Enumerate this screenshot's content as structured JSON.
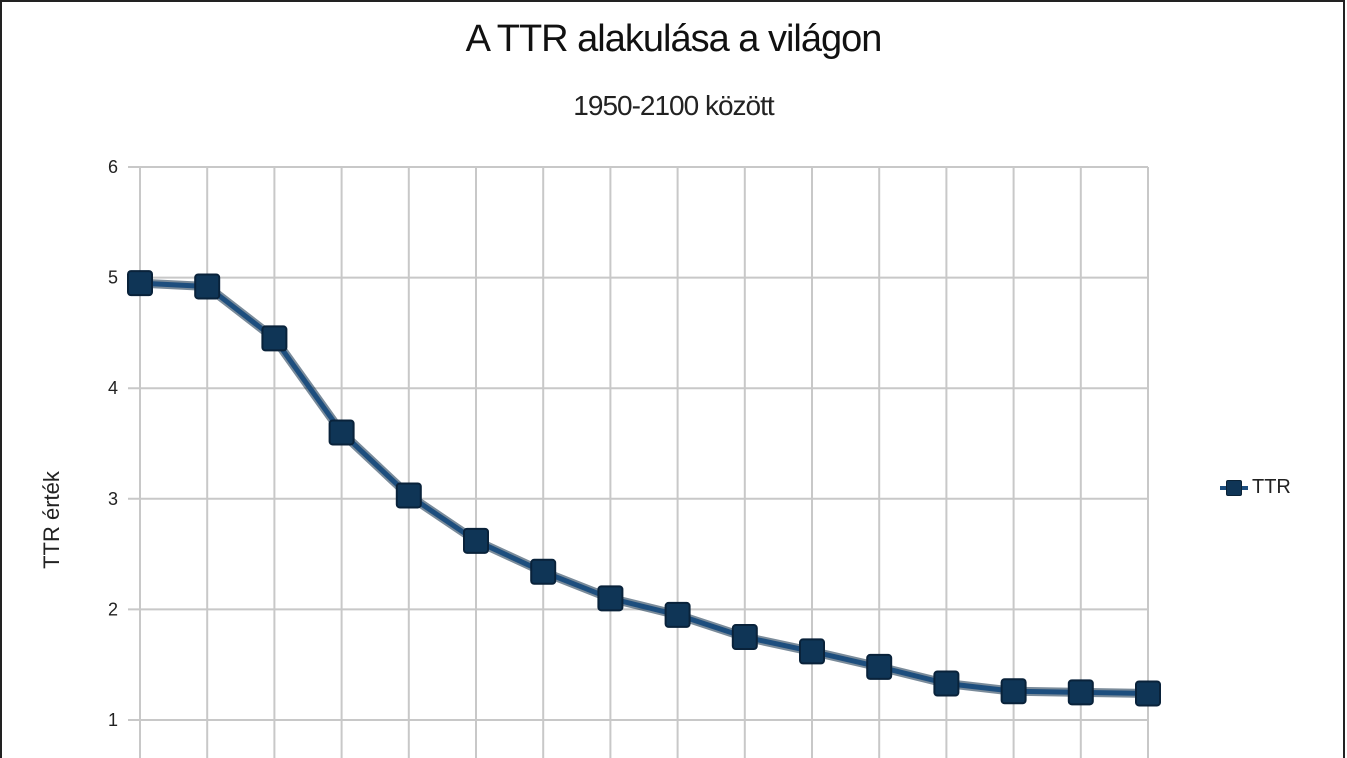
{
  "chart_data": {
    "type": "line",
    "title": "A TTR alakulása a világon",
    "subtitle": "1950-2100 között",
    "ylabel": "TTR érték",
    "xlabel": "",
    "ylim": [
      1,
      6
    ],
    "yticks": [
      "1",
      "2",
      "3",
      "4",
      "5",
      "6"
    ],
    "grid": true,
    "legend_position": "right",
    "series": [
      {
        "name": "TTR",
        "color": "#1d4e7e",
        "marker_color": "#0f3556",
        "values": [
          4.95,
          4.92,
          4.45,
          3.6,
          3.03,
          2.62,
          2.34,
          2.1,
          1.95,
          1.75,
          1.62,
          1.48,
          1.33,
          1.26,
          1.25,
          1.24
        ]
      }
    ]
  }
}
